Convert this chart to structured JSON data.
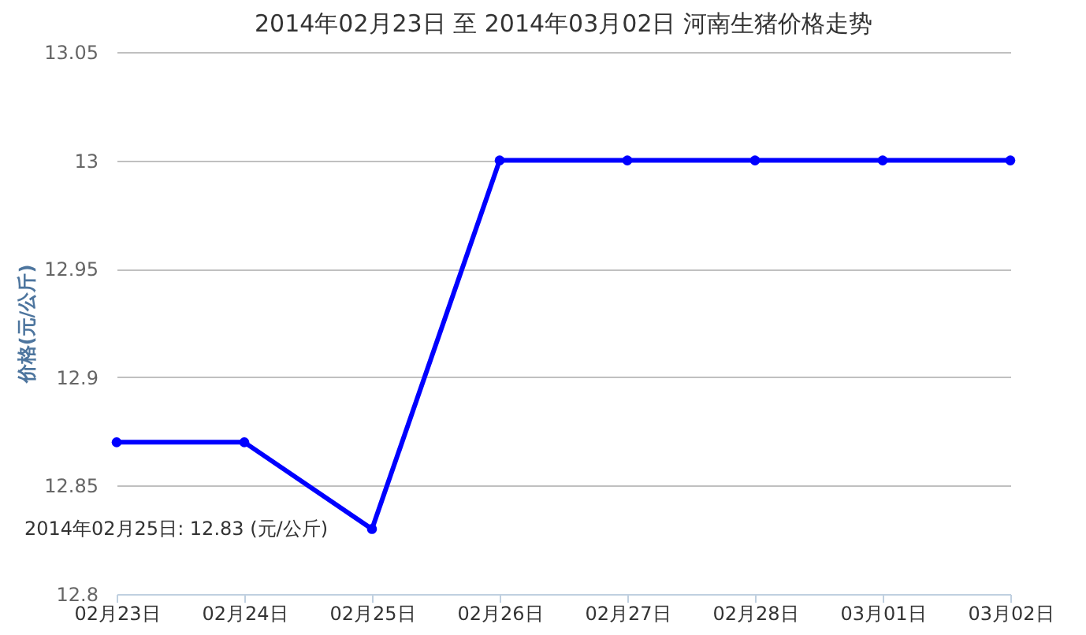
{
  "chart_data": {
    "type": "line",
    "title": "2014年02月23日 至 2014年03月02日 河南生猪价格走势",
    "ylabel": "价格(元/公斤)",
    "categories": [
      "02月23日",
      "02月24日",
      "02月25日",
      "02月26日",
      "02月27日",
      "02月28日",
      "03月01日",
      "03月02日"
    ],
    "series": [
      {
        "color": "#0000ff",
        "values": [
          12.87,
          12.87,
          12.83,
          13,
          13,
          13,
          13,
          13
        ]
      }
    ],
    "ylim": [
      12.8,
      13.05
    ],
    "yticks": [
      12.8,
      12.85,
      12.9,
      12.95,
      13,
      13.05
    ],
    "grid": "y",
    "marker": "circle",
    "annotations": [
      {
        "text": "2014年02月25日: 12.83 (元/公斤)",
        "x": "02月25日",
        "y": 12.83
      }
    ]
  }
}
